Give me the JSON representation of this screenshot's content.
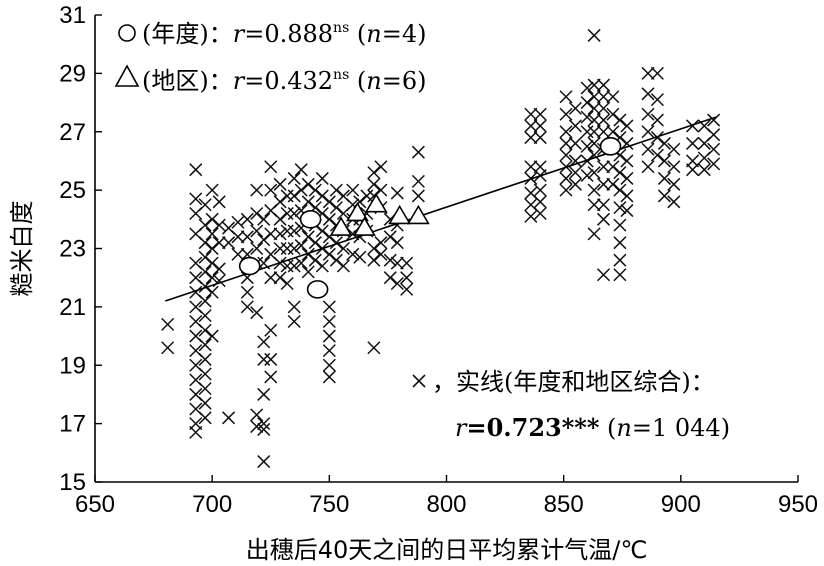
{
  "chart_data": {
    "type": "scatter",
    "xlabel": "出穗后40天之间的日平均累计气温/℃",
    "ylabel": "糙米白度",
    "xlim": [
      650,
      950
    ],
    "ylim": [
      15,
      31
    ],
    "x_ticks": [
      "650",
      "700",
      "750",
      "800",
      "850",
      "900",
      "950"
    ],
    "y_ticks": [
      "15",
      "17",
      "19",
      "21",
      "23",
      "25",
      "27",
      "29",
      "31"
    ],
    "grid": false,
    "legend": [
      {
        "marker": "○",
        "label": "(年度)：",
        "r_sym": "r",
        "r_val": "=0.888",
        "sig": "ns",
        "n_open": " (",
        "n_sym": "n",
        "n_val": "=4)"
      },
      {
        "marker": "△",
        "label": "(地区)：",
        "r_sym": "r",
        "r_val": "=0.432",
        "sig": "ns",
        "n_open": " (",
        "n_sym": "n",
        "n_val": "=6)"
      },
      {
        "marker": "×",
        "label": "，实线(年度和地区综合)：",
        "r_sym": "r",
        "r_val": "=0.723***",
        "sig": "",
        "n_open": " (",
        "n_sym": "n",
        "n_val": "=1 044)"
      }
    ],
    "trendline": {
      "x": [
        680,
        915
      ],
      "y": [
        21.2,
        27.5
      ]
    },
    "series": [
      {
        "name": "年度",
        "marker": "circle",
        "points": [
          [
            716,
            22.4
          ],
          [
            742,
            24.0
          ],
          [
            745,
            21.6
          ],
          [
            870,
            26.5
          ]
        ]
      },
      {
        "name": "地区",
        "marker": "triangle",
        "points": [
          [
            755,
            23.7
          ],
          [
            762,
            24.2
          ],
          [
            765,
            23.7
          ],
          [
            770,
            24.5
          ],
          [
            780,
            24.1
          ],
          [
            788,
            24.1
          ]
        ]
      },
      {
        "name": "实线(年度和地区综合)",
        "marker": "x",
        "clusters": [
          {
            "x": 681,
            "ys": [
              20.4,
              19.6
            ]
          },
          {
            "x": 693,
            "ys": [
              25.7,
              24.7,
              24.2,
              23.5,
              22.5,
              22.0,
              21.5,
              21.0,
              20.5,
              20.0,
              19.5,
              19.0,
              18.5,
              18.0,
              17.5,
              17.0,
              16.7
            ]
          },
          {
            "x": 697,
            "ys": [
              24.5,
              23.8,
              23.2,
              22.7,
              22.2,
              21.7,
              21.2,
              20.7,
              20.2,
              19.7,
              19.2,
              18.7,
              18.2,
              17.7,
              17.2
            ]
          },
          {
            "x": 700,
            "ys": [
              25.0,
              24.0,
              23.5,
              23.0,
              22.5,
              22.0,
              21.5,
              20.0
            ]
          },
          {
            "x": 703,
            "ys": [
              24.6,
              23.8,
              23.2,
              22.3,
              21.9
            ]
          },
          {
            "x": 707,
            "ys": [
              23.7,
              23.2,
              17.2
            ]
          },
          {
            "x": 711,
            "ys": [
              23.9,
              23.4,
              22.8
            ]
          },
          {
            "x": 715,
            "ys": [
              24.0,
              23.4,
              22.8,
              22.0,
              21.5,
              21.0
            ]
          },
          {
            "x": 719,
            "ys": [
              25.0,
              24.2,
              23.6,
              23.0,
              22.5,
              20.8,
              17.3,
              16.9
            ]
          },
          {
            "x": 722,
            "ys": [
              24.0,
              23.3,
              22.5,
              19.8,
              19.2,
              18.0,
              17.0,
              16.8,
              15.7
            ]
          },
          {
            "x": 725,
            "ys": [
              25.8,
              25.0,
              24.3,
              23.5,
              22.8,
              22.0,
              20.2,
              19.2,
              18.6
            ]
          },
          {
            "x": 729,
            "ys": [
              25.2,
              24.6,
              24.0,
              23.5,
              23.0,
              22.5,
              22.0
            ]
          },
          {
            "x": 732,
            "ys": [
              24.8,
              24.2,
              23.6,
              23.0,
              22.4,
              21.8
            ]
          },
          {
            "x": 735,
            "ys": [
              25.4,
              24.8,
              24.2,
              23.6,
              23.0,
              22.4,
              21.0,
              20.5
            ]
          },
          {
            "x": 738,
            "ys": [
              25.7,
              25.0,
              24.3,
              23.7,
              23.1,
              22.5
            ]
          },
          {
            "x": 741,
            "ys": [
              25.2,
              24.6,
              24.0,
              23.4,
              22.8,
              22.2
            ]
          },
          {
            "x": 744,
            "ys": [
              25.0,
              24.4,
              23.8,
              23.2,
              22.6
            ]
          },
          {
            "x": 747,
            "ys": [
              25.4,
              24.8,
              24.2,
              23.6,
              23.0,
              22.4
            ]
          },
          {
            "x": 750,
            "ys": [
              24.6,
              24.0,
              23.4,
              22.8,
              21.0,
              20.5,
              20.0,
              19.5,
              19.0,
              18.6
            ]
          },
          {
            "x": 753,
            "ys": [
              25.0,
              24.4,
              23.8,
              23.2,
              22.6
            ]
          },
          {
            "x": 756,
            "ys": [
              24.8,
              24.2,
              23.6,
              23.0,
              22.4
            ]
          },
          {
            "x": 760,
            "ys": [
              25.0,
              24.5,
              24.0,
              23.5,
              22.8
            ]
          },
          {
            "x": 763,
            "ys": [
              24.6,
              24.0,
              23.4,
              22.7
            ]
          },
          {
            "x": 766,
            "ys": [
              24.8,
              24.2,
              23.6
            ]
          },
          {
            "x": 769,
            "ys": [
              25.6,
              25.2,
              24.8,
              23.0,
              22.6,
              19.6
            ]
          },
          {
            "x": 772,
            "ys": [
              25.8,
              25.0,
              24.4,
              23.2,
              22.8
            ]
          },
          {
            "x": 776,
            "ys": [
              24.0,
              23.4,
              22.6,
              22.0
            ]
          },
          {
            "x": 779,
            "ys": [
              24.9,
              23.8,
              23.2,
              22.5,
              21.8
            ]
          },
          {
            "x": 783,
            "ys": [
              22.5,
              22.0,
              21.6
            ]
          },
          {
            "x": 788,
            "ys": [
              26.3,
              25.3,
              24.8
            ]
          },
          {
            "x": 836,
            "ys": [
              27.6,
              27.2,
              26.8,
              25.8,
              25.4,
              24.9,
              24.5,
              24.1
            ]
          },
          {
            "x": 840,
            "ys": [
              27.6,
              27.2,
              26.8,
              25.8,
              25.5,
              25.0,
              24.6,
              24.2
            ]
          },
          {
            "x": 851,
            "ys": [
              28.2,
              27.6,
              27.0,
              26.6,
              26.2,
              25.8,
              25.4,
              25.0
            ]
          },
          {
            "x": 855,
            "ys": [
              27.8,
              27.2,
              26.6,
              26.0,
              25.6,
              25.2
            ]
          },
          {
            "x": 860,
            "ys": [
              28.5,
              28.0,
              27.5,
              27.0,
              26.5,
              26.0,
              25.5
            ]
          },
          {
            "x": 863,
            "ys": [
              30.3,
              28.6,
              28.2,
              27.8,
              27.4,
              27.0,
              26.6,
              26.2,
              25.6,
              25.0,
              24.5,
              23.5
            ]
          },
          {
            "x": 867,
            "ys": [
              28.6,
              28.2,
              27.8,
              27.4,
              27.0,
              26.4,
              25.8,
              25.2,
              24.5,
              24.0,
              22.1
            ]
          },
          {
            "x": 871,
            "ys": [
              28.2,
              27.6,
              27.0,
              26.4,
              25.8,
              25.2
            ]
          },
          {
            "x": 874,
            "ys": [
              27.4,
              26.8,
              26.2,
              25.6,
              25.0,
              24.4,
              23.8,
              23.2,
              22.6,
              22.1
            ]
          },
          {
            "x": 877,
            "ys": [
              27.2,
              26.6,
              26.0,
              25.4,
              24.8,
              24.3
            ]
          },
          {
            "x": 886,
            "ys": [
              29.0,
              28.3,
              27.6,
              27.0,
              26.4,
              25.8
            ]
          },
          {
            "x": 890,
            "ys": [
              29.0,
              28.1,
              27.4,
              26.8,
              26.2
            ]
          },
          {
            "x": 893,
            "ys": [
              26.6,
              26.0,
              25.4,
              24.8
            ]
          },
          {
            "x": 897,
            "ys": [
              26.4,
              25.8,
              25.2,
              24.6
            ]
          },
          {
            "x": 905,
            "ys": [
              27.2,
              26.6,
              26.0,
              25.7
            ]
          },
          {
            "x": 910,
            "ys": [
              27.2,
              26.6,
              26.1,
              25.7
            ]
          },
          {
            "x": 914,
            "ys": [
              27.4,
              26.9,
              26.4,
              25.9
            ]
          }
        ]
      }
    ]
  }
}
